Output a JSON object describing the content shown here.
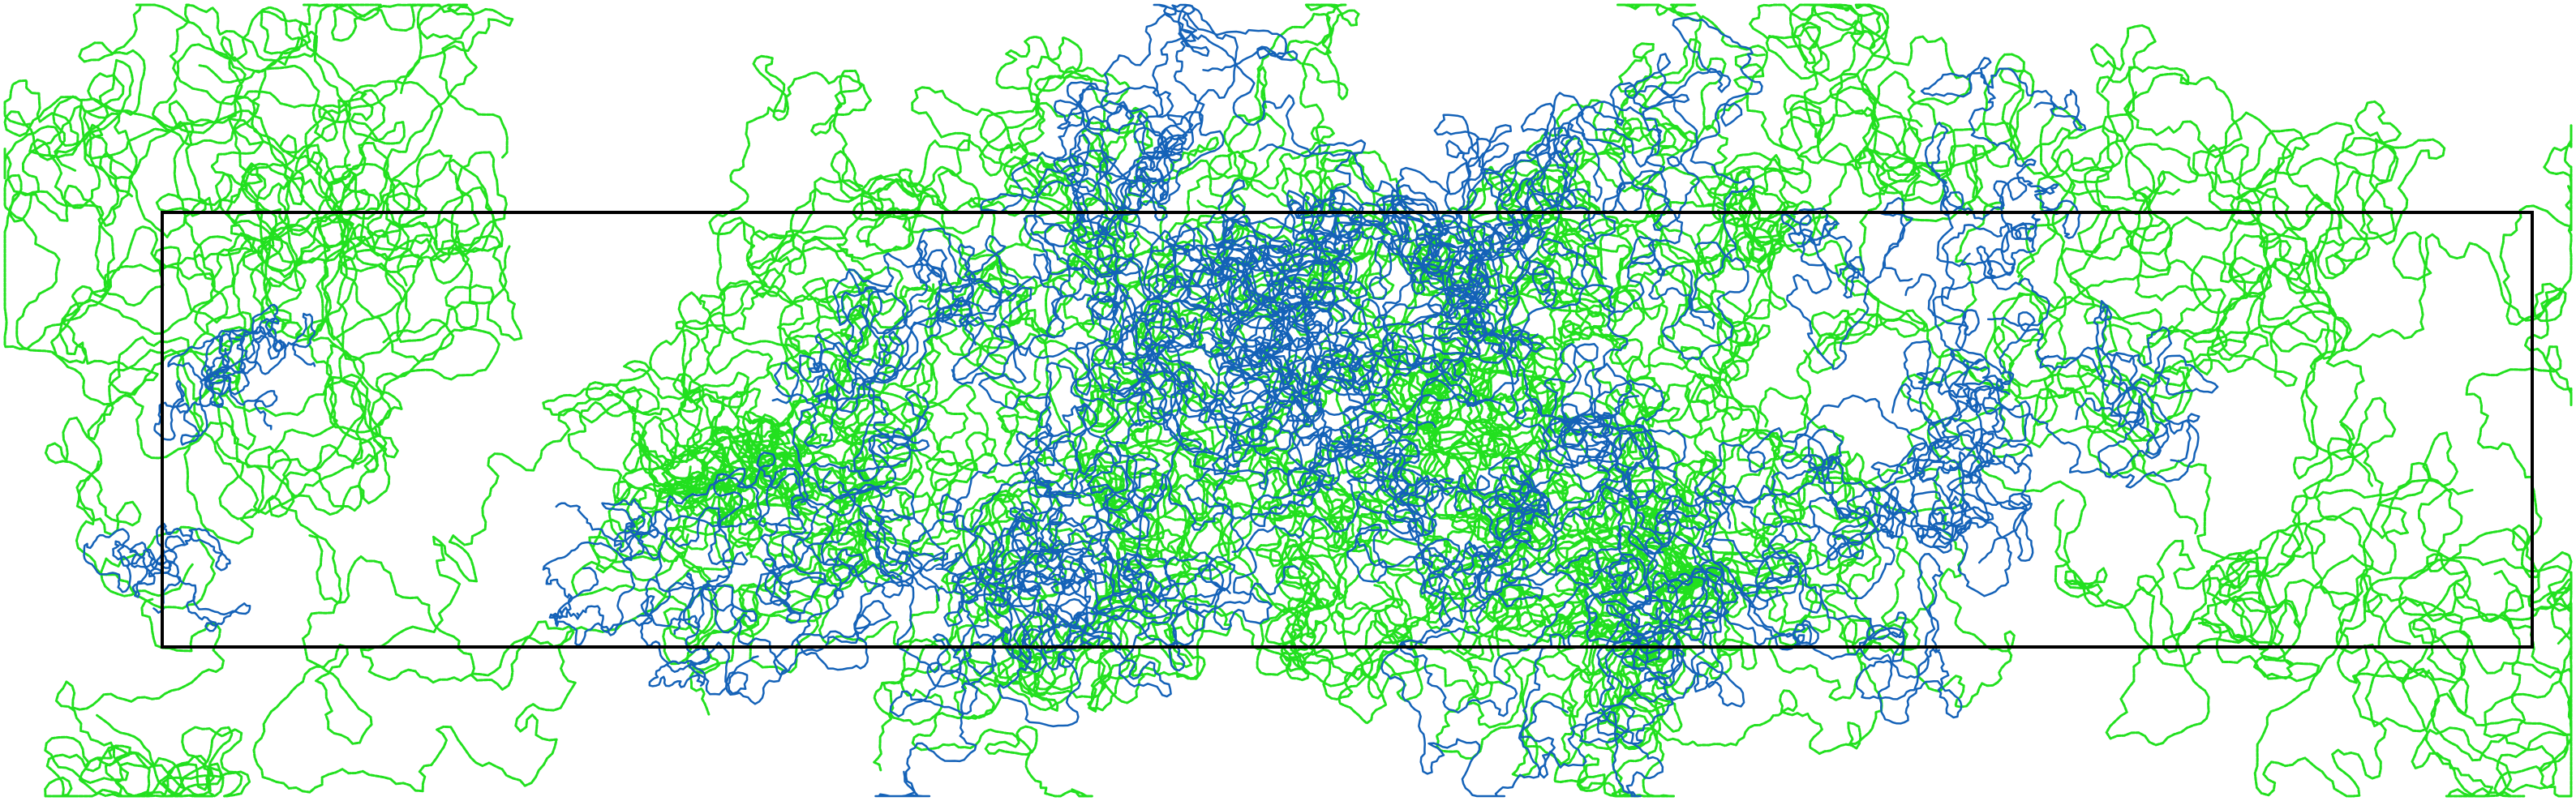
{
  "scene": {
    "background": "#ffffff",
    "box_color": "#000000",
    "palette": {
      "green_chain": "#22e01f",
      "blue_chain": "#1462b8"
    },
    "chain_types": [
      "green_chain",
      "blue_chain"
    ]
  }
}
